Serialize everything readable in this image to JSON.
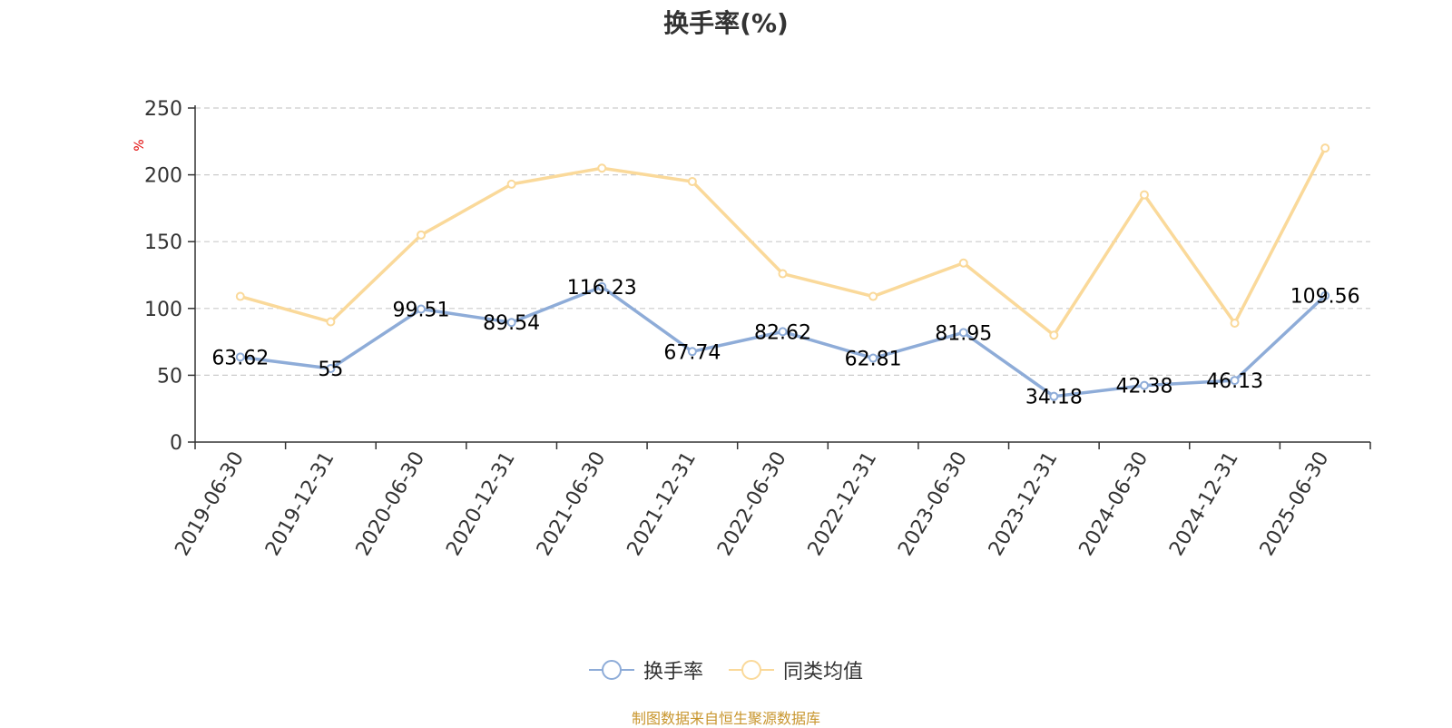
{
  "chart_data": {
    "type": "line",
    "title": "换手率(%)",
    "ylabel": "%",
    "ylim": [
      0,
      250
    ],
    "yticks": [
      "0",
      "50",
      "100",
      "150",
      "200",
      "250"
    ],
    "categories": [
      "2019-06-30",
      "2019-12-31",
      "2020-06-30",
      "2020-12-31",
      "2021-06-30",
      "2021-12-31",
      "2022-06-30",
      "2022-12-31",
      "2023-06-30",
      "2023-12-31",
      "2024-06-30",
      "2024-12-31",
      "2025-06-30"
    ],
    "grid": true,
    "legend_position": "bottom-center",
    "series": [
      {
        "name": "换手率",
        "color": "#8eacd8",
        "values": [
          63.62,
          55,
          99.51,
          89.54,
          116.23,
          67.74,
          82.62,
          62.81,
          81.95,
          34.18,
          42.38,
          46.13,
          109.56
        ],
        "labels": [
          "63.62",
          "55",
          "99.51",
          "89.54",
          "116.23",
          "67.74",
          "82.62",
          "62.81",
          "81.95",
          "34.18",
          "42.38",
          "46.13",
          "109.56"
        ]
      },
      {
        "name": "同类均值",
        "color": "#fad99a",
        "values": [
          109,
          90,
          155,
          193,
          205,
          195,
          126,
          109,
          134,
          80,
          185,
          89,
          220
        ]
      }
    ]
  },
  "footer": {
    "source": "制图数据来自恒生聚源数据库"
  }
}
